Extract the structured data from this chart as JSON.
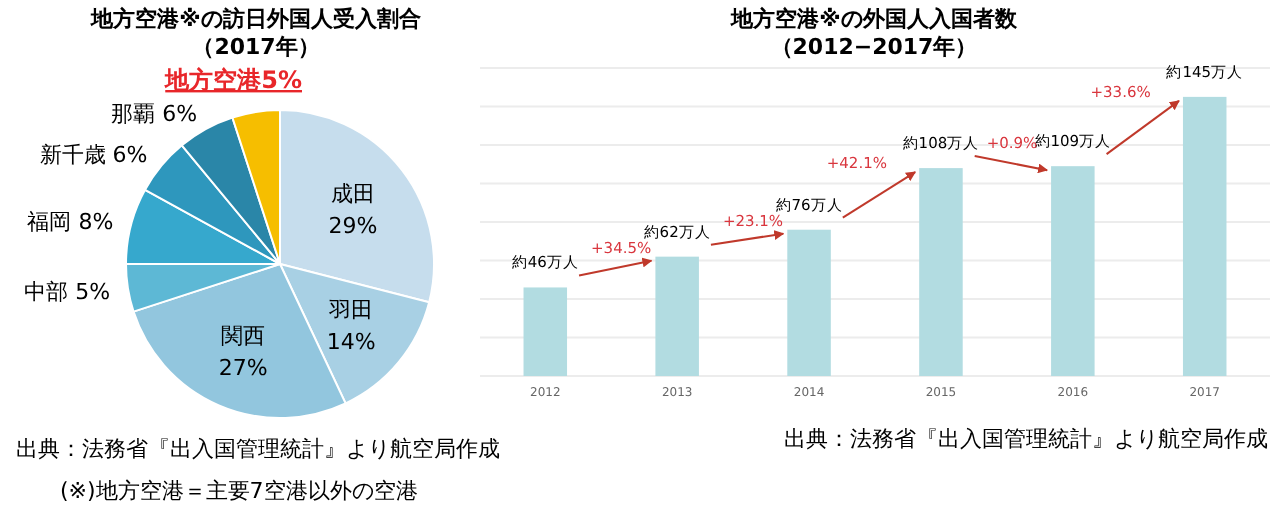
{
  "chart_data": [
    {
      "type": "pie",
      "title": "地方空港※の訪日外国人受入割合",
      "subtitle": "（2017年）",
      "categories": [
        "成田",
        "羽田",
        "関西",
        "中部",
        "福岡",
        "新千歳",
        "那覇",
        "地方空港"
      ],
      "values": [
        29,
        14,
        27,
        5,
        8,
        6,
        6,
        5
      ],
      "colors": [
        "#c6dded",
        "#a8d0e4",
        "#92c6de",
        "#5db8d5",
        "#36a8cd",
        "#2e97bd",
        "#2a86a8",
        "#f6be00"
      ],
      "value_labels": [
        "29%",
        "14%",
        "27%",
        "5%",
        "8%",
        "6%",
        "6%",
        "5%"
      ],
      "annotations": [
        "出典：法務省『出入国管理統計』より航空局作成",
        "(※)地方空港＝主要7空港以外の空港"
      ]
    },
    {
      "type": "bar",
      "title": "地方空港※の外国人入国者数",
      "subtitle": "（2012−2017年）",
      "categories": [
        "2012",
        "2013",
        "2014",
        "2015",
        "2016",
        "2017"
      ],
      "values": [
        46,
        62,
        76,
        108,
        109,
        145
      ],
      "color": "#b2dce1",
      "value_labels": [
        "約46万人",
        "約62万人",
        "約76万人",
        "約108万人",
        "約109万人",
        "約145万人"
      ],
      "ylim": [
        0,
        160
      ],
      "yticks": [
        {
          "value": 0,
          "label": null
        },
        {
          "value": 20,
          "label": null
        },
        {
          "value": 40,
          "label": null
        },
        {
          "value": 60,
          "label": null
        },
        {
          "value": 80,
          "label": null
        },
        {
          "value": 100,
          "label": null
        },
        {
          "value": 120,
          "label": null
        },
        {
          "value": 140,
          "label": null
        },
        {
          "value": 160,
          "label": null
        }
      ],
      "grid": "y",
      "tick_labels": "x",
      "annotations": [
        "+34.5%",
        "+23.1%",
        "+42.1%",
        "+0.9%",
        "+33.6%",
        "出典：法務省『出入国管理統計』より航空局作成"
      ]
    }
  ]
}
